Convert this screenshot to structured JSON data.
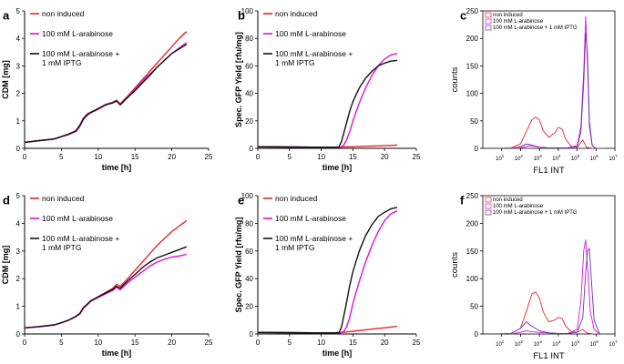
{
  "colors": {
    "non_induced": "#e8262a",
    "arabinose": "#e010e0",
    "arabinose_iptg": "#111111",
    "flow_purple": "#6a35a8"
  },
  "chart_data": [
    {
      "id": "a",
      "letter": "a",
      "type": "line",
      "xlabel": "time [h]",
      "ylabel": "CDM [mg]",
      "xlim": [
        0,
        25
      ],
      "ylim": [
        0,
        5
      ],
      "xticks": [
        0,
        5,
        10,
        15,
        20,
        25
      ],
      "yticks": [
        0,
        1,
        2,
        3,
        4,
        5
      ],
      "legend_position": "top-left",
      "series": [
        {
          "name": "non induced",
          "color": "#e8262a",
          "x": [
            0,
            2,
            4,
            5,
            6,
            6.5,
            7,
            7.5,
            8,
            8.5,
            9,
            10,
            11,
            12,
            12.5,
            13,
            14,
            15,
            16,
            17,
            18,
            19,
            20,
            21,
            22
          ],
          "y": [
            0.22,
            0.28,
            0.34,
            0.42,
            0.52,
            0.58,
            0.65,
            0.85,
            1.1,
            1.25,
            1.32,
            1.45,
            1.6,
            1.68,
            1.75,
            1.62,
            1.9,
            2.2,
            2.5,
            2.8,
            3.1,
            3.4,
            3.7,
            4.0,
            4.25
          ]
        },
        {
          "name": "100 mM L-arabinose",
          "color": "#e010e0",
          "x": [
            0,
            2,
            4,
            5,
            6,
            6.5,
            7,
            7.5,
            8,
            8.5,
            9,
            10,
            11,
            12,
            12.5,
            13,
            14,
            15,
            16,
            17,
            18,
            19,
            20,
            21,
            22
          ],
          "y": [
            0.22,
            0.28,
            0.33,
            0.42,
            0.5,
            0.56,
            0.62,
            0.8,
            1.05,
            1.2,
            1.3,
            1.42,
            1.58,
            1.66,
            1.72,
            1.6,
            1.88,
            2.15,
            2.45,
            2.7,
            2.95,
            3.2,
            3.45,
            3.65,
            3.85
          ]
        },
        {
          "name": "100 mM L-arabinose +\n1 mM IPTG",
          "color": "#111111",
          "x": [
            0,
            2,
            4,
            5,
            6,
            6.5,
            7,
            7.5,
            8,
            8.5,
            9,
            10,
            11,
            12,
            12.5,
            13,
            14,
            15,
            16,
            17,
            18,
            19,
            20,
            21,
            22
          ],
          "y": [
            0.22,
            0.28,
            0.34,
            0.43,
            0.52,
            0.58,
            0.64,
            0.82,
            1.08,
            1.22,
            1.3,
            1.44,
            1.58,
            1.66,
            1.73,
            1.58,
            1.85,
            2.1,
            2.38,
            2.65,
            2.95,
            3.2,
            3.45,
            3.62,
            3.78
          ]
        }
      ]
    },
    {
      "id": "b",
      "letter": "b",
      "type": "line",
      "xlabel": "time [h]",
      "ylabel": "Spec. GFP Yield [rfu/mg]",
      "xlim": [
        0,
        25
      ],
      "ylim": [
        0,
        100
      ],
      "xticks": [
        0,
        5,
        10,
        15,
        20,
        25
      ],
      "yticks": [
        0,
        20,
        40,
        60,
        80,
        100
      ],
      "legend_position": "top-left",
      "series": [
        {
          "name": "non induced",
          "color": "#e8262a",
          "x": [
            0,
            5,
            10,
            12,
            13,
            15,
            17,
            19,
            21,
            22
          ],
          "y": [
            1.2,
            1.0,
            0.8,
            0.8,
            0.9,
            1.2,
            1.5,
            1.8,
            2.1,
            2.3
          ]
        },
        {
          "name": "100 mM L-arabinose",
          "color": "#e010e0",
          "x": [
            0,
            5,
            10,
            12,
            13,
            13.5,
            14,
            14.5,
            15,
            16,
            17,
            18,
            19,
            20,
            21,
            22
          ],
          "y": [
            1.0,
            0.8,
            0.7,
            0.7,
            0.8,
            2,
            6,
            12,
            20,
            33,
            44,
            53,
            60,
            65,
            68,
            69
          ]
        },
        {
          "name": "100 mM L-arabinose +\n1 mM IPTG",
          "color": "#111111",
          "x": [
            0,
            5,
            10,
            12,
            12.8,
            13.2,
            13.8,
            14.5,
            15,
            16,
            17,
            18,
            19,
            20,
            21,
            22
          ],
          "y": [
            1.2,
            1.0,
            0.8,
            0.8,
            1.0,
            5,
            15,
            27,
            34,
            44,
            51,
            56,
            60,
            62,
            63.5,
            64
          ]
        }
      ]
    },
    {
      "id": "c",
      "letter": "c",
      "type": "line",
      "xlabel": "FL1 INT",
      "ylabel": "counts",
      "xlim_log10": [
        0,
        7
      ],
      "ylim": [
        0,
        250
      ],
      "xtick_exponents": [
        1,
        2,
        3,
        4,
        5,
        6,
        7
      ],
      "yticks": [
        0,
        50,
        100,
        150,
        200,
        250
      ],
      "legend_position": "top-left",
      "series": [
        {
          "name": "non induced",
          "color": "#e8262a",
          "x": [
            0.8,
            1.5,
            2.0,
            2.3,
            2.6,
            2.8,
            3.0,
            3.2,
            3.5,
            3.8,
            4.0,
            4.2,
            4.4,
            4.7,
            5.0,
            5.3,
            5.5,
            5.8,
            6.0,
            6.5
          ],
          "y": [
            0,
            1,
            8,
            30,
            52,
            57,
            52,
            32,
            20,
            28,
            38,
            35,
            16,
            3,
            2,
            15,
            2,
            0,
            0,
            0
          ]
        },
        {
          "name": "100 mM L-arabinose",
          "color": "#e010e0",
          "x": [
            0.8,
            1.5,
            2.0,
            2.5,
            3.0,
            3.5,
            4.0,
            4.5,
            5.0,
            5.2,
            5.35,
            5.45,
            5.55,
            5.65,
            5.8,
            6.0,
            6.5
          ],
          "y": [
            0,
            0,
            1,
            5,
            2,
            1,
            1,
            1,
            5,
            40,
            140,
            240,
            150,
            40,
            5,
            0,
            0
          ]
        },
        {
          "name": "100 mM L-arabinose + 1 mM IPTG",
          "color": "#6a35a8",
          "x": [
            0.8,
            1.5,
            2.0,
            2.3,
            2.6,
            3.0,
            3.5,
            4.0,
            4.5,
            5.0,
            5.2,
            5.35,
            5.45,
            5.55,
            5.65,
            5.8,
            6.0,
            6.5
          ],
          "y": [
            0,
            0,
            3,
            8,
            6,
            2,
            1,
            1,
            1,
            3,
            30,
            120,
            210,
            170,
            50,
            5,
            0,
            0
          ]
        }
      ]
    },
    {
      "id": "d",
      "letter": "d",
      "type": "line",
      "xlabel": "time [h]",
      "ylabel": "CDM [mg]",
      "xlim": [
        0,
        25
      ],
      "ylim": [
        0,
        5
      ],
      "xticks": [
        0,
        5,
        10,
        15,
        20,
        25
      ],
      "yticks": [
        0,
        1,
        2,
        3,
        4,
        5
      ],
      "legend_position": "top-left",
      "series": [
        {
          "name": "non induced",
          "color": "#e8262a",
          "x": [
            0,
            2,
            4,
            5,
            6,
            7,
            7.5,
            8,
            9,
            10,
            11,
            12,
            12.5,
            13,
            14,
            15,
            16,
            17,
            18,
            19,
            20,
            21,
            22
          ],
          "y": [
            0.22,
            0.26,
            0.33,
            0.4,
            0.5,
            0.65,
            0.75,
            0.95,
            1.2,
            1.35,
            1.5,
            1.65,
            1.8,
            1.72,
            2.0,
            2.3,
            2.6,
            2.9,
            3.2,
            3.45,
            3.7,
            3.9,
            4.1
          ]
        },
        {
          "name": "100 mM L-arabinose",
          "color": "#e010e0",
          "x": [
            0,
            2,
            4,
            5,
            6,
            7,
            7.5,
            8,
            9,
            10,
            11,
            12,
            12.5,
            13,
            14,
            15,
            16,
            17,
            18,
            19,
            20,
            21,
            22
          ],
          "y": [
            0.22,
            0.26,
            0.32,
            0.4,
            0.5,
            0.63,
            0.72,
            0.92,
            1.18,
            1.32,
            1.45,
            1.58,
            1.7,
            1.6,
            1.85,
            2.05,
            2.25,
            2.45,
            2.6,
            2.7,
            2.78,
            2.82,
            2.88
          ]
        },
        {
          "name": "100 mM L-arabinose +\n1 mM IPTG",
          "color": "#111111",
          "x": [
            0,
            2,
            4,
            5,
            6,
            7,
            7.5,
            8,
            9,
            10,
            11,
            12,
            12.5,
            13,
            14,
            15,
            16,
            17,
            18,
            19,
            20,
            21,
            22
          ],
          "y": [
            0.22,
            0.27,
            0.33,
            0.41,
            0.5,
            0.64,
            0.74,
            0.95,
            1.2,
            1.34,
            1.48,
            1.62,
            1.72,
            1.65,
            1.92,
            2.15,
            2.4,
            2.6,
            2.75,
            2.85,
            2.95,
            3.05,
            3.15
          ]
        }
      ]
    },
    {
      "id": "e",
      "letter": "e",
      "type": "line",
      "xlabel": "time [h]",
      "ylabel": "Spec. GFP Yield [rfu/mg]",
      "xlim": [
        0,
        25
      ],
      "ylim": [
        0,
        100
      ],
      "xticks": [
        0,
        5,
        10,
        15,
        20,
        25
      ],
      "yticks": [
        0,
        20,
        40,
        60,
        80,
        100
      ],
      "legend_position": "top-left",
      "series": [
        {
          "name": "non induced",
          "color": "#e8262a",
          "x": [
            0,
            5,
            10,
            12,
            13,
            15,
            17,
            19,
            21,
            22
          ],
          "y": [
            1.2,
            1.0,
            0.8,
            0.8,
            1.0,
            2.0,
            3.0,
            4.0,
            5.0,
            5.5
          ]
        },
        {
          "name": "100 mM L-arabinose",
          "color": "#e010e0",
          "x": [
            0,
            5,
            10,
            12,
            13,
            13.5,
            14,
            14.5,
            15,
            16,
            17,
            18,
            19,
            20,
            21,
            22
          ],
          "y": [
            1.0,
            0.8,
            0.7,
            0.7,
            0.8,
            1.5,
            5,
            12,
            22,
            38,
            52,
            64,
            74,
            82,
            87,
            89
          ]
        },
        {
          "name": "100 mM L-arabinose +\n1 mM IPTG",
          "color": "#111111",
          "x": [
            0,
            5,
            10,
            12,
            12.8,
            13.2,
            13.8,
            14.5,
            15,
            16,
            17,
            18,
            19,
            20,
            21,
            22
          ],
          "y": [
            1.2,
            1.0,
            0.8,
            0.8,
            1.0,
            5,
            18,
            35,
            45,
            60,
            71,
            79,
            85,
            88,
            90.5,
            91.5
          ]
        }
      ]
    },
    {
      "id": "f",
      "letter": "f",
      "type": "line",
      "xlabel": "FL1 INT",
      "ylabel": "counts",
      "xlim_log10": [
        0,
        7
      ],
      "ylim": [
        0,
        250
      ],
      "xtick_exponents": [
        1,
        2,
        3,
        4,
        5,
        6,
        7
      ],
      "yticks": [
        0,
        50,
        100,
        150,
        200,
        250
      ],
      "legend_position": "top-left",
      "series": [
        {
          "name": "non induced",
          "color": "#e8262a",
          "x": [
            0.8,
            1.5,
            2.0,
            2.3,
            2.6,
            2.8,
            3.0,
            3.2,
            3.5,
            3.8,
            4.0,
            4.2,
            4.4,
            4.7,
            5.0,
            5.3,
            5.5,
            5.8,
            6.0,
            6.5
          ],
          "y": [
            0,
            1,
            10,
            40,
            72,
            76,
            65,
            40,
            22,
            25,
            30,
            28,
            14,
            4,
            3,
            8,
            2,
            0,
            0,
            0
          ]
        },
        {
          "name": "100 mM L-arabinose",
          "color": "#e010e0",
          "x": [
            0.8,
            1.5,
            2.0,
            2.3,
            2.6,
            3.0,
            3.5,
            4.0,
            4.5,
            5.0,
            5.2,
            5.35,
            5.45,
            5.55,
            5.7,
            5.9,
            6.2,
            6.5
          ],
          "y": [
            0,
            0,
            3,
            6,
            4,
            3,
            2,
            1,
            1,
            8,
            60,
            150,
            170,
            120,
            40,
            8,
            0,
            0
          ]
        },
        {
          "name": "100 mM L-arabinose + 1 mM IPTG",
          "color": "#6a35a8",
          "x": [
            0.8,
            1.5,
            2.0,
            2.3,
            2.6,
            3.0,
            3.5,
            4.0,
            4.5,
            5.0,
            5.3,
            5.45,
            5.55,
            5.65,
            5.75,
            5.9,
            6.2,
            6.5
          ],
          "y": [
            0,
            1,
            10,
            22,
            14,
            6,
            2,
            1,
            1,
            3,
            30,
            110,
            150,
            155,
            100,
            25,
            0,
            0
          ]
        }
      ]
    }
  ]
}
